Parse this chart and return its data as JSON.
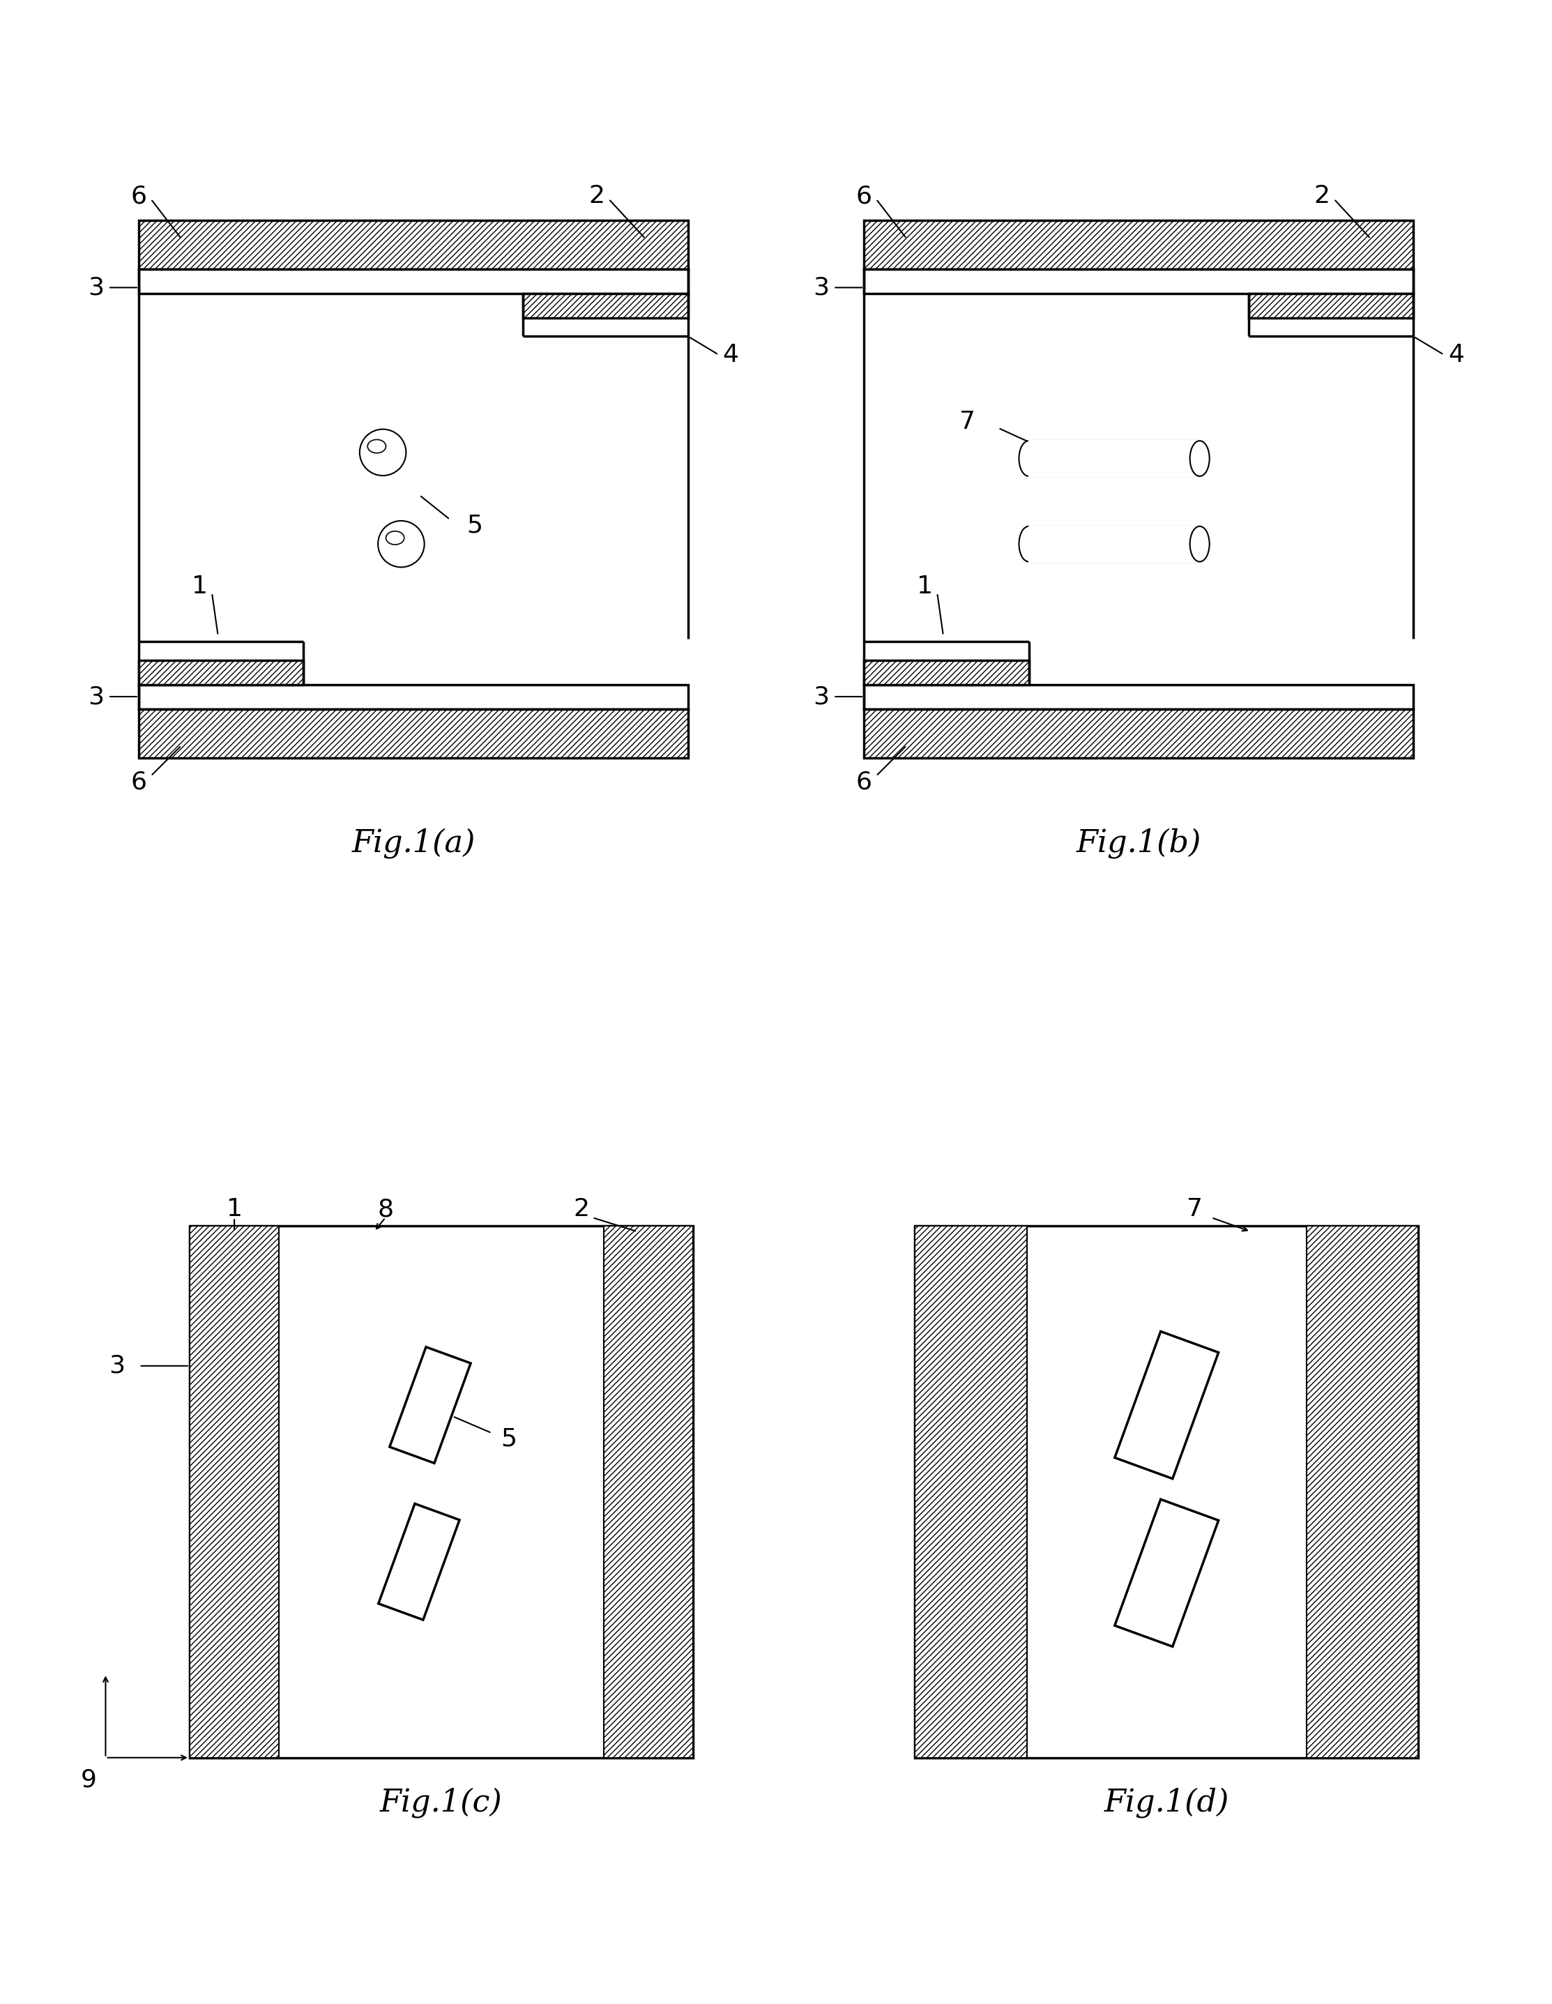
{
  "bg_color": "#ffffff",
  "line_color": "#000000",
  "hatch_pattern": "////",
  "fig_labels": [
    "Fig.1(a)",
    "Fig.1(b)",
    "Fig.1(c)",
    "Fig.1(d)"
  ],
  "label_fontsize": 32,
  "annotation_fontsize": 26,
  "lw_thick": 2.5,
  "lw_thin": 1.5
}
